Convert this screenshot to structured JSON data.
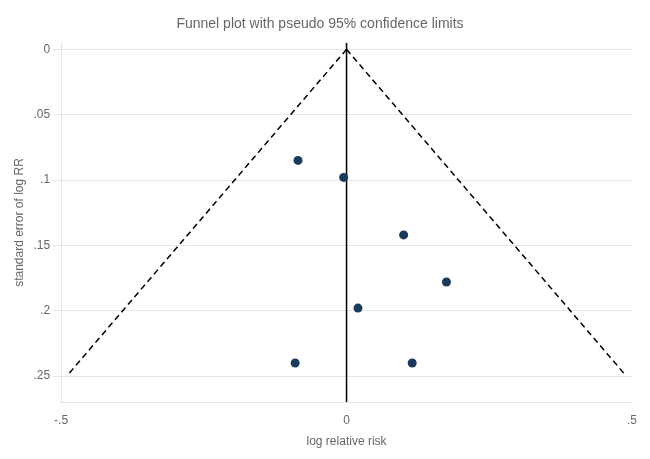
{
  "chart_data": {
    "type": "scatter",
    "title": "Funnel plot with pseudo 95% confidence limits",
    "x_label": "log relative risk",
    "y_label": "standard error of log RR",
    "xlim": [
      -0.5,
      0.5
    ],
    "ylim": [
      0.27,
      -0.005
    ],
    "xticks": [
      {
        "value": -0.5,
        "label": "-.5"
      },
      0,
      {
        "value": 0.5,
        "label": ".5"
      }
    ],
    "yticks": [
      0,
      {
        "value": 0.05,
        "label": ".05"
      },
      {
        "value": 0.1,
        "label": ".1"
      },
      {
        "value": 0.15,
        "label": ".15"
      },
      {
        "value": 0.2,
        "label": ".2"
      },
      {
        "value": 0.25,
        "label": ".25"
      }
    ],
    "grid": "y",
    "series": [
      {
        "type": "line",
        "x": [
          0,
          -0.49
        ],
        "values": [
          0,
          0.25
        ],
        "color": "#000000",
        "line_style": "dashed"
      },
      {
        "type": "line",
        "x": [
          0,
          0.49
        ],
        "values": [
          0,
          0.25
        ],
        "color": "#000000",
        "line_style": "dashed"
      },
      {
        "type": "line",
        "x": [
          0,
          0
        ],
        "values": [
          -0.005,
          0.27
        ],
        "color": "#000000",
        "line_style": "solid"
      },
      {
        "type": "scatter",
        "x": [
          -0.085,
          -0.005,
          0.1,
          0.175,
          0.02,
          -0.09,
          0.115
        ],
        "values": [
          0.085,
          0.098,
          0.142,
          0.178,
          0.198,
          0.24,
          0.24
        ],
        "color": "#1a3a5c",
        "marker": "circle"
      }
    ]
  }
}
